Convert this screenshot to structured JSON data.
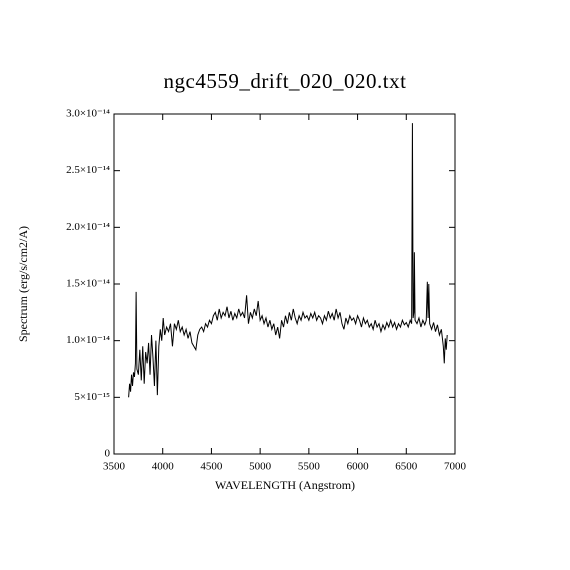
{
  "chart_data": {
    "type": "line",
    "title": "ngc4559_drift_020_020.txt",
    "x_label": "WAVELENGTH (Angstrom)",
    "y_label": "Spectrum (erg/s/cm2/A)",
    "xlim": [
      3500,
      7000
    ],
    "xticks": [
      3500,
      4000,
      4500,
      5000,
      5500,
      6000,
      6500,
      7000
    ],
    "ylim": [
      0,
      3e-14
    ],
    "yticks": [
      0,
      {
        "value": 5e-15,
        "label": "5×10⁻¹⁵"
      },
      {
        "value": 1e-14,
        "label": "1.0×10⁻¹⁴"
      },
      {
        "value": 1.5e-14,
        "label": "1.5×10⁻¹⁴"
      },
      {
        "value": 2e-14,
        "label": "2.0×10⁻¹⁴"
      },
      {
        "value": 2.5e-14,
        "label": "2.5×10⁻¹⁴"
      },
      {
        "value": 3e-14,
        "label": "3.0×10⁻¹⁴"
      }
    ],
    "color": "#000000",
    "grid": false,
    "x": [
      3650,
      3660,
      3670,
      3680,
      3690,
      3700,
      3710,
      3720,
      3727,
      3735,
      3750,
      3765,
      3780,
      3795,
      3810,
      3825,
      3840,
      3855,
      3870,
      3885,
      3900,
      3915,
      3930,
      3945,
      3960,
      3975,
      3990,
      4005,
      4020,
      4040,
      4060,
      4080,
      4100,
      4120,
      4140,
      4160,
      4180,
      4200,
      4220,
      4240,
      4260,
      4280,
      4300,
      4320,
      4340,
      4360,
      4380,
      4400,
      4420,
      4440,
      4460,
      4480,
      4500,
      4520,
      4540,
      4560,
      4580,
      4600,
      4620,
      4640,
      4660,
      4680,
      4700,
      4720,
      4740,
      4760,
      4780,
      4800,
      4820,
      4840,
      4861,
      4880,
      4900,
      4920,
      4940,
      4960,
      4980,
      5000,
      5020,
      5040,
      5060,
      5080,
      5100,
      5120,
      5140,
      5160,
      5180,
      5200,
      5220,
      5240,
      5260,
      5280,
      5300,
      5320,
      5340,
      5360,
      5380,
      5400,
      5420,
      5440,
      5460,
      5480,
      5500,
      5520,
      5540,
      5560,
      5580,
      5600,
      5620,
      5640,
      5660,
      5680,
      5700,
      5720,
      5740,
      5760,
      5780,
      5800,
      5820,
      5840,
      5860,
      5880,
      5900,
      5920,
      5940,
      5960,
      5980,
      6000,
      6020,
      6040,
      6060,
      6080,
      6100,
      6120,
      6140,
      6160,
      6180,
      6200,
      6220,
      6240,
      6260,
      6280,
      6300,
      6320,
      6340,
      6360,
      6380,
      6400,
      6420,
      6440,
      6460,
      6480,
      6500,
      6520,
      6540,
      6555,
      6563,
      6570,
      6578,
      6583,
      6590,
      6610,
      6630,
      6650,
      6670,
      6690,
      6705,
      6716,
      6724,
      6731,
      6740,
      6760,
      6780,
      6800,
      6820,
      6840,
      6860,
      6880,
      6890,
      6900,
      6910,
      6920
    ],
    "values": [
      5e-15,
      6.2e-15,
      5.5e-15,
      7e-15,
      6e-15,
      7.2e-15,
      6.8e-15,
      8e-15,
      1.43e-14,
      7.5e-15,
      7e-15,
      9.2e-15,
      6.5e-15,
      9.5e-15,
      6.2e-15,
      9e-15,
      8e-15,
      9.8e-15,
      7e-15,
      1.05e-14,
      8.5e-15,
      6e-15,
      1e-14,
      5.2e-15,
      9.5e-15,
      1.1e-14,
      1e-14,
      1.2e-14,
      1.05e-14,
      1.12e-14,
      1.08e-14,
      1.15e-14,
      9.5e-15,
      1.15e-14,
      1.1e-14,
      1.18e-14,
      1.08e-14,
      1.12e-14,
      1.05e-14,
      1.1e-14,
      1.02e-14,
      1.08e-14,
      9.8e-15,
      9.5e-15,
      9.2e-15,
      1.05e-14,
      1.1e-14,
      1.12e-14,
      1.08e-14,
      1.15e-14,
      1.12e-14,
      1.18e-14,
      1.15e-14,
      1.22e-14,
      1.25e-14,
      1.18e-14,
      1.28e-14,
      1.2e-14,
      1.25e-14,
      1.22e-14,
      1.3e-14,
      1.2e-14,
      1.26e-14,
      1.18e-14,
      1.24e-14,
      1.2e-14,
      1.28e-14,
      1.22e-14,
      1.25e-14,
      1.2e-14,
      1.4e-14,
      1.15e-14,
      1.25e-14,
      1.2e-14,
      1.28e-14,
      1.22e-14,
      1.35e-14,
      1.18e-14,
      1.22e-14,
      1.15e-14,
      1.2e-14,
      1.12e-14,
      1.18e-14,
      1.1e-14,
      1.15e-14,
      1.05e-14,
      1.12e-14,
      1.02e-14,
      1.18e-14,
      1.12e-14,
      1.22e-14,
      1.15e-14,
      1.25e-14,
      1.18e-14,
      1.28e-14,
      1.2e-14,
      1.15e-14,
      1.22e-14,
      1.18e-14,
      1.25e-14,
      1.2e-14,
      1.22e-14,
      1.18e-14,
      1.24e-14,
      1.2e-14,
      1.25e-14,
      1.18e-14,
      1.22e-14,
      1.2e-14,
      1.15e-14,
      1.22e-14,
      1.18e-14,
      1.26e-14,
      1.2e-14,
      1.24e-14,
      1.18e-14,
      1.28e-14,
      1.2e-14,
      1.25e-14,
      1.15e-14,
      1.1e-14,
      1.2e-14,
      1.15e-14,
      1.22e-14,
      1.18e-14,
      1.2e-14,
      1.15e-14,
      1.22e-14,
      1.18e-14,
      1.12e-14,
      1.2e-14,
      1.15e-14,
      1.18e-14,
      1.12e-14,
      1.15e-14,
      1.1e-14,
      1.18e-14,
      1.12e-14,
      1.15e-14,
      1.08e-14,
      1.14e-14,
      1.1e-14,
      1.16e-14,
      1.12e-14,
      1.18e-14,
      1.12e-14,
      1.16e-14,
      1.1e-14,
      1.15e-14,
      1.12e-14,
      1.18e-14,
      1.14e-14,
      1.16e-14,
      1.12e-14,
      1.18e-14,
      1.15e-14,
      2.92e-14,
      1.2e-14,
      1.25e-14,
      1.78e-14,
      1.18e-14,
      1.15e-14,
      1.2e-14,
      1.12e-14,
      1.18e-14,
      1.14e-14,
      1.18e-14,
      1.52e-14,
      1.2e-14,
      1.5e-14,
      1.15e-14,
      1.1e-14,
      1.16e-14,
      1.08e-14,
      1.14e-14,
      1.05e-14,
      1.1e-14,
      9.5e-15,
      8e-15,
      1.02e-14,
      9.2e-15,
      1.05e-14
    ]
  }
}
